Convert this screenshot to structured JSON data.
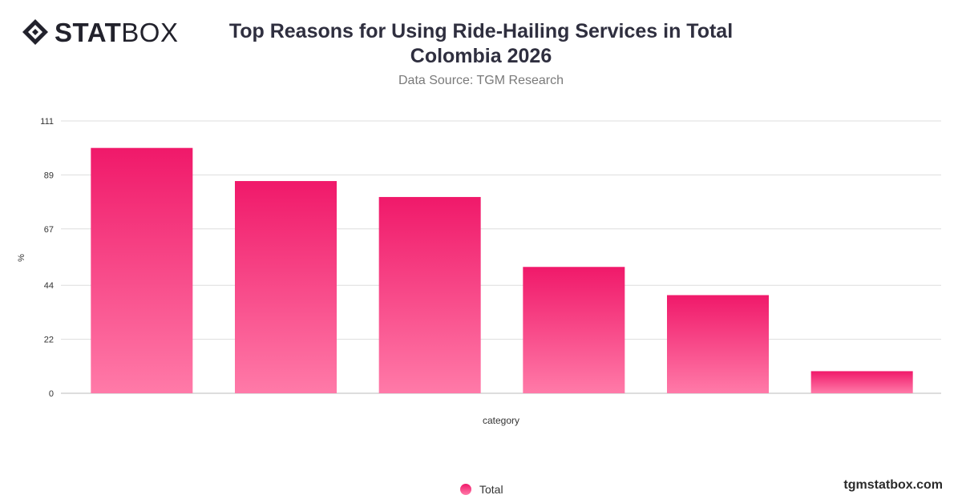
{
  "brand": {
    "logo_bold": "STAT",
    "logo_light": "BOX",
    "watermark": "tgmstatbox.com"
  },
  "header": {
    "title": "Top Reasons for Using Ride-Hailing Services in Total Colombia 2026",
    "subtitle": "Data Source: TGM Research"
  },
  "legend": {
    "items": [
      {
        "label": "Total",
        "color": "#f0196a"
      }
    ]
  },
  "colors": {
    "bar_top": "#f0196a",
    "bar_bottom": "#ff7aa8",
    "grid": "#dddddd",
    "axis_text": "#333333"
  },
  "chart_data": {
    "type": "bar",
    "title": "Top Reasons for Using Ride-Hailing Services in Total Colombia 2026",
    "subtitle": "Data Source: TGM Research",
    "xlabel": "category",
    "ylabel": "%",
    "ylim": [
      0,
      111
    ],
    "yticks": [
      0,
      22,
      44,
      67,
      89,
      111
    ],
    "categories": [
      "",
      "",
      "",
      "",
      "",
      ""
    ],
    "series": [
      {
        "name": "Total",
        "values": [
          100,
          86.5,
          80,
          51.5,
          40,
          9
        ]
      }
    ],
    "grid": true,
    "legend_position": "bottom-center"
  }
}
